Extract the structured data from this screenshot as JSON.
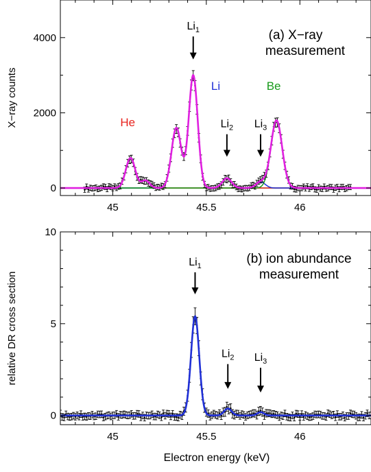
{
  "figure": {
    "xlabel": "Electron energy (keV)"
  },
  "chart_data": [
    {
      "type": "line",
      "panel_label": "(a) X−ray",
      "panel_label_line2": "measurement",
      "ylabel": "X−ray counts",
      "xlim": [
        44.72,
        46.38
      ],
      "ylim": [
        -200,
        5000
      ],
      "x_ticks": [
        45,
        45.5,
        46
      ],
      "x_tick_labels": [
        "45",
        "45.5",
        "46"
      ],
      "y_ticks": [
        0,
        2000,
        4000
      ],
      "y_tick_labels": [
        "0",
        "2000",
        "4000"
      ],
      "x_minor_step": 0.1,
      "y_minor_step": 1000,
      "colors": {
        "he": "#e8231e",
        "li": "#1f2fd6",
        "be": "#179a1a",
        "fit": "#e020e0",
        "baseline": "#179a1a",
        "data": "#000000"
      },
      "group_labels": [
        {
          "text": "He",
          "x": 45.08,
          "y": 1640,
          "color": "#e8231e"
        },
        {
          "text": "Li",
          "x": 45.55,
          "y": 2610,
          "color": "#1f2fd6"
        },
        {
          "text": "Be",
          "x": 45.86,
          "y": 2610,
          "color": "#179a1a"
        }
      ],
      "markers": [
        {
          "label": "Li",
          "sub": "1",
          "x": 45.43,
          "y_top": 4030,
          "y_tip": 3420
        },
        {
          "label": "Li",
          "sub": "2",
          "x": 45.61,
          "y_top": 1430,
          "y_tip": 830
        },
        {
          "label": "Li",
          "sub": "3",
          "x": 45.79,
          "y_top": 1430,
          "y_tip": 830
        }
      ],
      "components": [
        {
          "name": "He",
          "color": "#e8231e",
          "peaks": [
            {
              "center": 45.095,
              "height": 800,
              "sigma": 0.025
            },
            {
              "center": 45.175,
              "height": 200,
              "sigma": 0.022
            }
          ]
        },
        {
          "name": "Li",
          "color": "#1f2fd6",
          "peaks": [
            {
              "center": 45.34,
              "height": 1600,
              "sigma": 0.026
            },
            {
              "center": 45.43,
              "height": 3000,
              "sigma": 0.024
            },
            {
              "center": 45.61,
              "height": 260,
              "sigma": 0.025
            },
            {
              "center": 45.79,
              "height": 160,
              "sigma": 0.025
            }
          ]
        },
        {
          "name": "Be",
          "color": "#179a1a",
          "peaks": [
            {
              "center": 45.875,
              "height": 1800,
              "sigma": 0.03
            }
          ]
        }
      ],
      "data_points": {
        "x_start": 44.85,
        "x_end": 46.27,
        "step": 0.01,
        "noise_amp": 45,
        "errorbar": 70
      }
    },
    {
      "type": "line",
      "panel_label": "(b) ion abundance",
      "panel_label_line2": "measurement",
      "ylabel": "relative DR cross section",
      "xlim": [
        44.72,
        46.38
      ],
      "ylim": [
        -0.5,
        10
      ],
      "x_ticks": [
        45,
        45.5,
        46
      ],
      "x_tick_labels": [
        "45",
        "45.5",
        "46"
      ],
      "y_ticks": [
        0,
        5,
        10
      ],
      "y_tick_labels": [
        "0",
        "5",
        "10"
      ],
      "x_minor_step": 0.1,
      "y_minor_step": 1,
      "colors": {
        "fit": "#1f2fd6",
        "data": "#000000"
      },
      "markers": [
        {
          "label": "Li",
          "sub": "1",
          "x": 45.44,
          "y_top": 7.8,
          "y_tip": 6.6
        },
        {
          "label": "Li",
          "sub": "2",
          "x": 45.615,
          "y_top": 2.8,
          "y_tip": 1.45
        },
        {
          "label": "Li",
          "sub": "3",
          "x": 45.79,
          "y_top": 2.6,
          "y_tip": 1.25
        }
      ],
      "components": [
        {
          "name": "Li",
          "color": "#1f2fd6",
          "peaks": [
            {
              "center": 45.44,
              "height": 5.4,
              "sigma": 0.022
            },
            {
              "center": 45.615,
              "height": 0.38,
              "sigma": 0.02
            },
            {
              "center": 45.79,
              "height": 0.18,
              "sigma": 0.018
            }
          ]
        }
      ],
      "data_points": {
        "x_start": 44.72,
        "x_end": 46.38,
        "step": 0.01,
        "noise_amp": 0.12,
        "errorbar": 0.18
      }
    }
  ]
}
